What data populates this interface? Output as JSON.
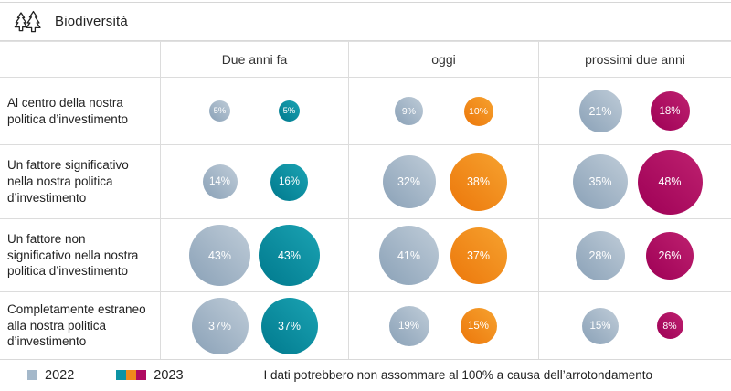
{
  "header": {
    "title": "Biodiversità",
    "icon": "pine-trees-icon"
  },
  "chart_data": {
    "type": "table",
    "subtype": "bubble-matrix",
    "title": "Biodiversità",
    "columns": [
      "Due anni fa",
      "oggi",
      "prossimi due anni"
    ],
    "rows": [
      "Al centro della nostra politica d’investimento",
      "Un fattore significativo nella nostra politica d’investimento",
      "Un fattore non significativo nella nostra politica d’investimento",
      "Completamente estraneo alla nostra politica d’investimento"
    ],
    "series": [
      {
        "name": "2022",
        "values": [
          [
            5,
            9,
            21
          ],
          [
            14,
            32,
            35
          ],
          [
            43,
            41,
            28
          ],
          [
            37,
            19,
            15
          ]
        ]
      },
      {
        "name": "2023",
        "values": [
          [
            5,
            10,
            18
          ],
          [
            16,
            38,
            48
          ],
          [
            43,
            37,
            26
          ],
          [
            37,
            15,
            8
          ]
        ]
      }
    ],
    "value_unit": "%",
    "bubble_scale": "area proportional to value",
    "legend_position": "bottom-left",
    "grid": true
  },
  "colors": {
    "y2022": "#a4b8ca",
    "y2023_due_anni_fa": "#0d93a4",
    "y2023_oggi": "#f08a1d",
    "y2023_prossimi_due_anni": "#b00b61"
  },
  "legend": {
    "items": [
      {
        "label": "2022",
        "swatches": [
          "#a4b8ca"
        ]
      },
      {
        "label": "2023",
        "swatches": [
          "#0d93a4",
          "#f08a1d",
          "#b00b61"
        ]
      }
    ],
    "note": "I dati potrebbero non assommare al 100% a causa dell’arrotondamento"
  }
}
